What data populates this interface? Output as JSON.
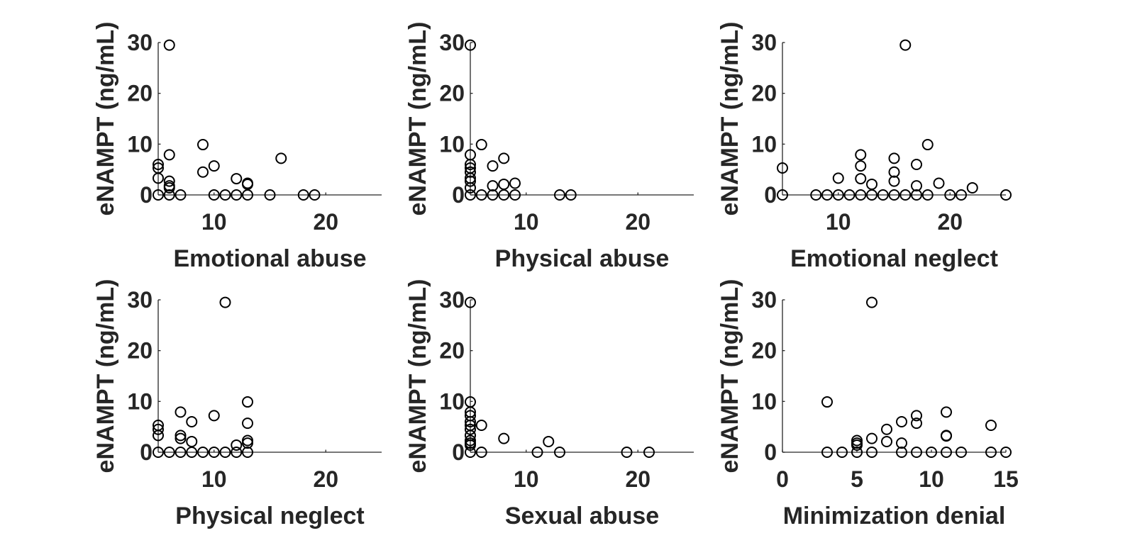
{
  "chart_data": [
    {
      "type": "scatter",
      "xlabel": "Emotional abuse",
      "ylabel": "eNAMPT (ng/mL)",
      "xlim": [
        5,
        25
      ],
      "ylim": [
        0,
        30
      ],
      "xticks": [
        10,
        20
      ],
      "yticks": [
        0,
        10,
        20,
        30
      ],
      "points": [
        [
          5,
          6
        ],
        [
          5,
          5.3
        ],
        [
          5,
          3.3
        ],
        [
          5,
          0
        ],
        [
          6,
          29.5
        ],
        [
          6,
          7.9
        ],
        [
          6,
          2.7
        ],
        [
          6,
          1.8
        ],
        [
          6,
          1.4
        ],
        [
          6,
          0
        ],
        [
          7,
          0
        ],
        [
          9,
          9.9
        ],
        [
          9,
          4.5
        ],
        [
          10,
          5.7
        ],
        [
          10,
          0
        ],
        [
          11,
          0
        ],
        [
          12,
          3.2
        ],
        [
          12,
          0
        ],
        [
          13,
          2.3
        ],
        [
          13,
          2.1
        ],
        [
          13,
          0
        ],
        [
          15,
          0
        ],
        [
          16,
          7.2
        ],
        [
          18,
          0
        ],
        [
          19,
          0
        ]
      ]
    },
    {
      "type": "scatter",
      "xlabel": "Physical abuse",
      "ylabel": "eNAMPT (ng/mL)",
      "xlim": [
        5,
        25
      ],
      "ylim": [
        0,
        30
      ],
      "xticks": [
        10,
        20
      ],
      "yticks": [
        0,
        10,
        20,
        30
      ],
      "points": [
        [
          5,
          29.5
        ],
        [
          5,
          7.9
        ],
        [
          5,
          6
        ],
        [
          5,
          5.3
        ],
        [
          5,
          4.5
        ],
        [
          5,
          3.3
        ],
        [
          5,
          2.7
        ],
        [
          5,
          1.4
        ],
        [
          5,
          0
        ],
        [
          6,
          9.9
        ],
        [
          6,
          0
        ],
        [
          7,
          5.7
        ],
        [
          7,
          1.8
        ],
        [
          7,
          0
        ],
        [
          8,
          7.2
        ],
        [
          8,
          2.1
        ],
        [
          8,
          0
        ],
        [
          9,
          2.3
        ],
        [
          9,
          0
        ],
        [
          13,
          0
        ],
        [
          14,
          0
        ]
      ]
    },
    {
      "type": "scatter",
      "xlabel": "Emotional neglect",
      "ylabel": "eNAMPT (ng/mL)",
      "xlim": [
        5,
        25
      ],
      "ylim": [
        0,
        30
      ],
      "xticks": [
        10,
        20
      ],
      "yticks": [
        0,
        10,
        20,
        30
      ],
      "points": [
        [
          5,
          5.3
        ],
        [
          5,
          0
        ],
        [
          8,
          0
        ],
        [
          9,
          0
        ],
        [
          10,
          3.3
        ],
        [
          10,
          0
        ],
        [
          11,
          0
        ],
        [
          12,
          7.9
        ],
        [
          12,
          5.7
        ],
        [
          12,
          3.2
        ],
        [
          12,
          0
        ],
        [
          13,
          2.1
        ],
        [
          13,
          0
        ],
        [
          14,
          0
        ],
        [
          15,
          7.2
        ],
        [
          15,
          4.5
        ],
        [
          15,
          2.7
        ],
        [
          15,
          0
        ],
        [
          16,
          29.5
        ],
        [
          16,
          0
        ],
        [
          17,
          6
        ],
        [
          17,
          1.8
        ],
        [
          17,
          0
        ],
        [
          18,
          9.9
        ],
        [
          18,
          0
        ],
        [
          19,
          2.3
        ],
        [
          20,
          0
        ],
        [
          21,
          0
        ],
        [
          22,
          1.4
        ],
        [
          25,
          0
        ]
      ]
    },
    {
      "type": "scatter",
      "xlabel": "Physical neglect",
      "ylabel": "eNAMPT (ng/mL)",
      "xlim": [
        5,
        25
      ],
      "ylim": [
        0,
        30
      ],
      "xticks": [
        10,
        20
      ],
      "yticks": [
        0,
        10,
        20,
        30
      ],
      "points": [
        [
          5,
          5.3
        ],
        [
          5,
          4.5
        ],
        [
          5,
          3.3
        ],
        [
          5,
          0
        ],
        [
          6,
          0
        ],
        [
          7,
          7.9
        ],
        [
          7,
          3.3
        ],
        [
          7,
          2.7
        ],
        [
          7,
          0
        ],
        [
          8,
          6
        ],
        [
          8,
          2.1
        ],
        [
          8,
          0
        ],
        [
          9,
          0
        ],
        [
          10,
          7.2
        ],
        [
          10,
          0
        ],
        [
          11,
          29.5
        ],
        [
          11,
          0
        ],
        [
          12,
          1.4
        ],
        [
          12,
          0
        ],
        [
          13,
          9.9
        ],
        [
          13,
          5.7
        ],
        [
          13,
          2.3
        ],
        [
          13,
          1.8
        ],
        [
          13,
          0
        ]
      ]
    },
    {
      "type": "scatter",
      "xlabel": "Sexual abuse",
      "ylabel": "eNAMPT (ng/mL)",
      "xlim": [
        5,
        25
      ],
      "ylim": [
        0,
        30
      ],
      "xticks": [
        10,
        20
      ],
      "yticks": [
        0,
        10,
        20,
        30
      ],
      "points": [
        [
          5,
          29.5
        ],
        [
          5,
          9.9
        ],
        [
          5,
          7.9
        ],
        [
          5,
          7.2
        ],
        [
          5,
          6
        ],
        [
          5,
          5.3
        ],
        [
          5,
          4.5
        ],
        [
          5,
          3.3
        ],
        [
          5,
          2.3
        ],
        [
          5,
          1.8
        ],
        [
          5,
          1.4
        ],
        [
          5,
          0
        ],
        [
          6,
          5.3
        ],
        [
          6,
          0
        ],
        [
          8,
          2.7
        ],
        [
          11,
          0
        ],
        [
          12,
          2.1
        ],
        [
          13,
          0
        ],
        [
          19,
          0
        ],
        [
          21,
          0
        ]
      ]
    },
    {
      "type": "scatter",
      "xlabel": "Minimization denial",
      "ylabel": "eNAMPT (ng/mL)",
      "xlim": [
        0,
        15
      ],
      "ylim": [
        0,
        30
      ],
      "xticks": [
        0,
        5,
        10,
        15
      ],
      "yticks": [
        0,
        10,
        20,
        30
      ],
      "points": [
        [
          3,
          9.9
        ],
        [
          3,
          0
        ],
        [
          4,
          0
        ],
        [
          5,
          2.3
        ],
        [
          5,
          1.8
        ],
        [
          5,
          1.4
        ],
        [
          5,
          0
        ],
        [
          6,
          29.5
        ],
        [
          6,
          2.7
        ],
        [
          6,
          0
        ],
        [
          7,
          4.5
        ],
        [
          7,
          2.1
        ],
        [
          8,
          6
        ],
        [
          8,
          1.8
        ],
        [
          8,
          0
        ],
        [
          9,
          7.2
        ],
        [
          9,
          5.7
        ],
        [
          9,
          0
        ],
        [
          10,
          0
        ],
        [
          11,
          7.9
        ],
        [
          11,
          3.3
        ],
        [
          11,
          3.2
        ],
        [
          11,
          0
        ],
        [
          12,
          0
        ],
        [
          14,
          5.3
        ],
        [
          14,
          0
        ],
        [
          15,
          0
        ]
      ]
    }
  ]
}
